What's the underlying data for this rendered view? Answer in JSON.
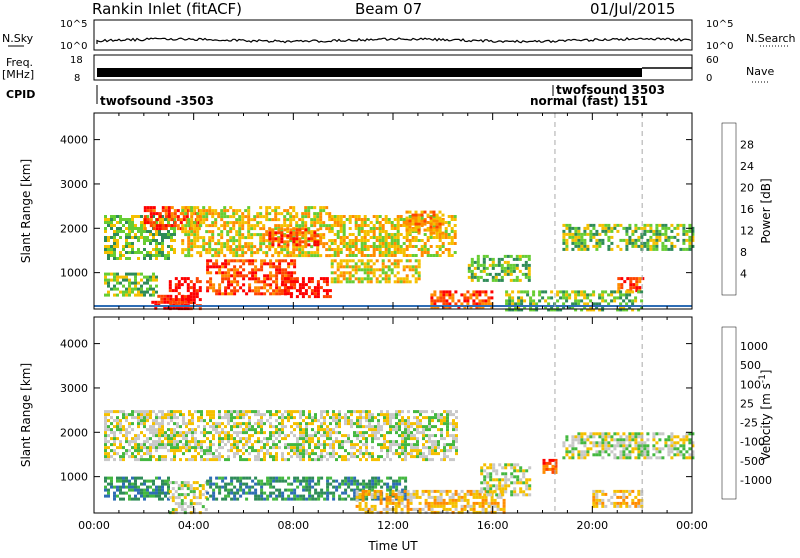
{
  "header": {
    "station": "Rankin Inlet (fitACF)",
    "beam": "Beam 07",
    "date": "01/Jul/2015"
  },
  "top_panels": {
    "nsky_label": "N.Sky",
    "nsearch_label": "N.Search",
    "noise_ticks": [
      "10^5",
      "10^0"
    ],
    "freq_label": "Freq.",
    "freq_unit": "[MHz]",
    "freq_ticks": [
      "18",
      "8"
    ],
    "nave_label": "Nave",
    "nave_ticks": [
      "60",
      "0"
    ],
    "cpid_label": "CPID",
    "cpid_entries": [
      "twofsound -3503",
      "normal (fast) 151",
      "twofsound 3503"
    ]
  },
  "chart_data": [
    {
      "type": "heatmap",
      "name": "Power",
      "ylabel": "Slant Range [km]",
      "ylim": [
        180,
        4600
      ],
      "yticks": [
        1000,
        2000,
        3000,
        4000
      ],
      "xticks": [
        "00:00",
        "04:00",
        "08:00",
        "12:00",
        "16:00",
        "20:00",
        "00:00"
      ],
      "xlim_hours": [
        0,
        24
      ],
      "colorbar_label": "Power [dB]",
      "colorbar_ticks": [
        "4",
        "8",
        "12",
        "16",
        "20",
        "24",
        "28"
      ],
      "colorbar_colors": [
        "#0000ff",
        "#2a52be",
        "#2e8b57",
        "#66cd33",
        "#f5c000",
        "#ff8c00",
        "#ff4500",
        "#ff0000"
      ],
      "dashed_lines_hours": [
        18.5,
        22.0
      ],
      "regions": [
        {
          "t0": 0.4,
          "t1": 3.2,
          "r0": 1300,
          "r1": 2300,
          "level": 3
        },
        {
          "t0": 2.0,
          "t1": 4.2,
          "r0": 2000,
          "r1": 2500,
          "level": 6
        },
        {
          "t0": 3.5,
          "t1": 9.5,
          "r0": 1400,
          "r1": 2500,
          "level": 4
        },
        {
          "t0": 7.0,
          "t1": 9.0,
          "r0": 1600,
          "r1": 2000,
          "level": 6
        },
        {
          "t0": 9.5,
          "t1": 14.5,
          "r0": 1400,
          "r1": 2300,
          "level": 4
        },
        {
          "t0": 12.5,
          "t1": 14.0,
          "r0": 1900,
          "r1": 2400,
          "level": 5
        },
        {
          "t0": 0.4,
          "t1": 2.5,
          "r0": 500,
          "r1": 1000,
          "level": 3
        },
        {
          "t0": 2.3,
          "t1": 3.8,
          "r0": 180,
          "r1": 500,
          "level": 7
        },
        {
          "t0": 3.0,
          "t1": 4.3,
          "r0": 180,
          "r1": 900,
          "level": 7
        },
        {
          "t0": 4.5,
          "t1": 8.0,
          "r0": 500,
          "r1": 1300,
          "level": 6
        },
        {
          "t0": 7.5,
          "t1": 9.5,
          "r0": 450,
          "r1": 900,
          "level": 7
        },
        {
          "t0": 9.5,
          "t1": 13.0,
          "r0": 800,
          "r1": 1300,
          "level": 4
        },
        {
          "t0": 13.5,
          "t1": 16.0,
          "r0": 200,
          "r1": 600,
          "level": 6
        },
        {
          "t0": 15.0,
          "t1": 17.5,
          "r0": 800,
          "r1": 1400,
          "level": 3
        },
        {
          "t0": 18.8,
          "t1": 24.0,
          "r0": 1500,
          "r1": 2100,
          "level": 3
        },
        {
          "t0": 21.0,
          "t1": 22.0,
          "r0": 600,
          "r1": 900,
          "level": 6
        },
        {
          "t0": 16.5,
          "t1": 22.0,
          "r0": 180,
          "r1": 600,
          "level": 3
        }
      ]
    },
    {
      "type": "heatmap",
      "name": "Velocity",
      "ylabel": "Slant Range [km]",
      "ylim": [
        180,
        4600
      ],
      "yticks": [
        1000,
        2000,
        3000,
        4000
      ],
      "xticks": [
        "00:00",
        "04:00",
        "08:00",
        "12:00",
        "16:00",
        "20:00",
        "00:00"
      ],
      "xlabel": "Time UT",
      "xlim_hours": [
        0,
        24
      ],
      "colorbar_label": "Velocity [m s^-1]",
      "colorbar_ticks": [
        "1000",
        "500",
        "100",
        "25",
        "-25",
        "-100",
        "-500",
        "-1000"
      ],
      "colorbar_colors": [
        "#1a3fc9",
        "#2e6db5",
        "#2e8b57",
        "#44b840",
        "#c8c8c8",
        "#f5c000",
        "#ff8c00",
        "#ff4500",
        "#ff0000"
      ],
      "dashed_lines_hours": [
        18.5,
        22.0
      ],
      "regions": [
        {
          "t0": 0.4,
          "t1": 14.5,
          "r0": 1400,
          "r1": 2500,
          "level": 4
        },
        {
          "t0": 18.8,
          "t1": 24.0,
          "r0": 1400,
          "r1": 2000,
          "level": 4
        },
        {
          "t0": 0.4,
          "t1": 3.0,
          "r0": 500,
          "r1": 1000,
          "level": 2
        },
        {
          "t0": 3.0,
          "t1": 4.5,
          "r0": 180,
          "r1": 900,
          "level": 4
        },
        {
          "t0": 4.5,
          "t1": 12.5,
          "r0": 500,
          "r1": 1000,
          "level": 2
        },
        {
          "t0": 10.5,
          "t1": 16.5,
          "r0": 200,
          "r1": 700,
          "level": 5
        },
        {
          "t0": 15.5,
          "t1": 17.5,
          "r0": 600,
          "r1": 1300,
          "level": 4
        },
        {
          "t0": 18.0,
          "t1": 18.6,
          "r0": 1100,
          "r1": 1400,
          "level": 7
        },
        {
          "t0": 20.0,
          "t1": 22.0,
          "r0": 300,
          "r1": 700,
          "level": 5
        }
      ]
    }
  ]
}
